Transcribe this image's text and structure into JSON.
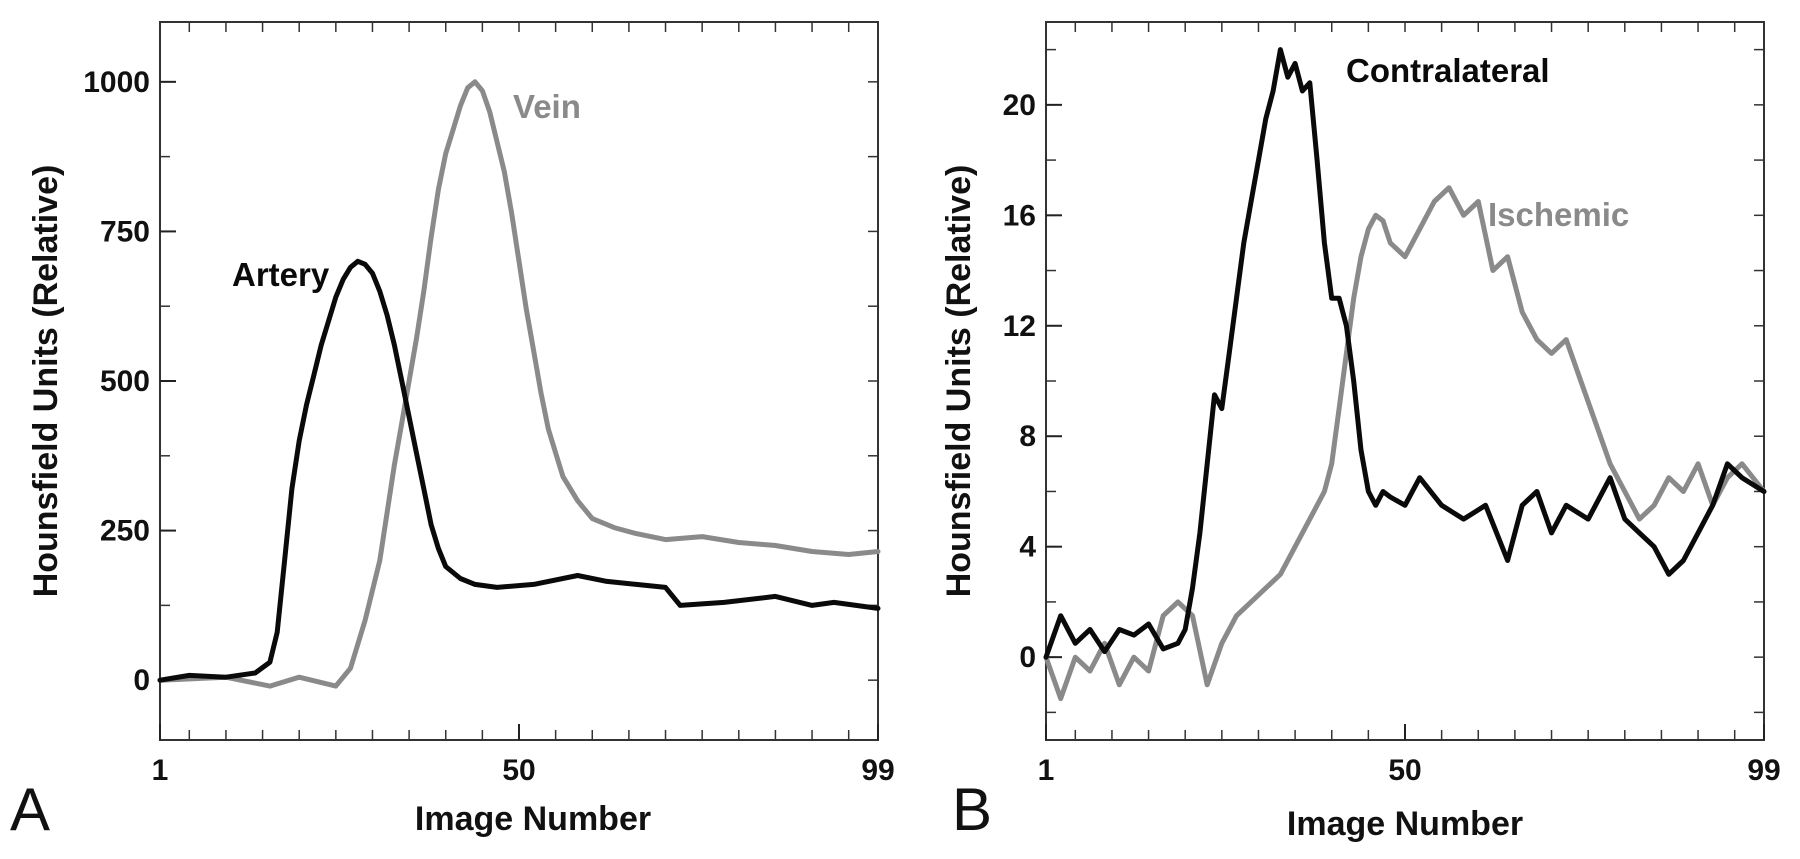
{
  "colors": {
    "black_series": "#0a0a0a",
    "gray_series": "#8a8a8a",
    "axis": "#333333"
  },
  "chart_data": [
    {
      "panel_label": "A",
      "type": "line",
      "xlabel": "Image Number",
      "ylabel": "Hounsfield Units (Relative)",
      "xlim": [
        1,
        99
      ],
      "ylim": [
        -100,
        1100
      ],
      "x_ticks": [
        "1",
        "50",
        "99"
      ],
      "y_ticks": [
        "0",
        "250",
        "500",
        "750",
        "1000"
      ],
      "x_tick_values": [
        1,
        50,
        99
      ],
      "y_tick_values": [
        0,
        250,
        500,
        750,
        1000
      ],
      "grid": false,
      "series": [
        {
          "name": "Artery",
          "color": "#0a0a0a",
          "x": [
            1,
            5,
            10,
            14,
            16,
            17,
            18,
            19,
            20,
            21,
            22,
            23,
            24,
            25,
            26,
            27,
            28,
            29,
            30,
            31,
            32,
            33,
            34,
            35,
            36,
            37,
            38,
            39,
            40,
            42,
            44,
            47,
            52,
            58,
            62,
            66,
            70,
            72,
            78,
            85,
            90,
            93,
            99
          ],
          "y": [
            0,
            8,
            5,
            12,
            30,
            80,
            200,
            320,
            400,
            460,
            510,
            560,
            600,
            640,
            670,
            690,
            700,
            695,
            680,
            650,
            610,
            560,
            500,
            440,
            380,
            320,
            260,
            220,
            190,
            170,
            160,
            155,
            160,
            175,
            165,
            160,
            155,
            125,
            130,
            140,
            125,
            130,
            120
          ]
        },
        {
          "name": "Vein",
          "color": "#8a8a8a",
          "x": [
            1,
            10,
            16,
            20,
            25,
            27,
            29,
            31,
            32,
            33,
            34,
            35,
            36,
            37,
            38,
            39,
            40,
            41,
            42,
            43,
            44,
            45,
            46,
            47,
            48,
            49,
            50,
            51,
            52,
            53,
            54,
            55,
            56,
            58,
            60,
            63,
            66,
            70,
            75,
            80,
            85,
            90,
            95,
            99
          ],
          "y": [
            0,
            5,
            -10,
            5,
            -10,
            20,
            100,
            200,
            280,
            360,
            430,
            500,
            570,
            650,
            740,
            820,
            880,
            920,
            960,
            990,
            1000,
            985,
            950,
            900,
            850,
            780,
            700,
            620,
            550,
            480,
            420,
            380,
            340,
            300,
            270,
            255,
            245,
            235,
            240,
            230,
            225,
            215,
            210,
            215
          ]
        }
      ]
    },
    {
      "panel_label": "B",
      "type": "line",
      "xlabel": "Image Number",
      "ylabel": "Hounsfield Units (Relative)",
      "xlim": [
        1,
        99
      ],
      "ylim": [
        -3,
        23
      ],
      "x_ticks": [
        "1",
        "50",
        "99"
      ],
      "y_ticks": [
        "0",
        "4",
        "8",
        "12",
        "16",
        "20"
      ],
      "x_tick_values": [
        1,
        50,
        99
      ],
      "y_tick_values": [
        0,
        4,
        8,
        12,
        16,
        20
      ],
      "grid": false,
      "series": [
        {
          "name": "Contralateral",
          "color": "#0a0a0a",
          "x": [
            1,
            3,
            5,
            7,
            9,
            11,
            13,
            15,
            17,
            19,
            20,
            21,
            22,
            23,
            24,
            25,
            26,
            27,
            28,
            29,
            30,
            31,
            32,
            33,
            34,
            35,
            36,
            37,
            38,
            39,
            40,
            41,
            42,
            43,
            44,
            45,
            46,
            47,
            48,
            50,
            52,
            55,
            58,
            61,
            64,
            66,
            68,
            70,
            72,
            75,
            78,
            80,
            82,
            84,
            86,
            88,
            90,
            92,
            94,
            96,
            99
          ],
          "y": [
            0,
            1.5,
            0.5,
            1,
            0.2,
            1,
            0.8,
            1.2,
            0.3,
            0.5,
            1,
            2.5,
            4.5,
            7,
            9.5,
            9,
            11,
            13,
            15,
            16.5,
            18,
            19.5,
            20.5,
            22,
            21,
            21.5,
            20.5,
            20.8,
            18,
            15,
            13,
            13,
            12,
            10,
            7.5,
            6,
            5.5,
            6,
            5.8,
            5.5,
            6.5,
            5.5,
            5,
            5.5,
            3.5,
            5.5,
            6,
            4.5,
            5.5,
            5,
            6.5,
            5,
            4.5,
            4,
            3,
            3.5,
            4.5,
            5.5,
            7,
            6.5,
            6
          ]
        },
        {
          "name": "Ischemic",
          "color": "#8a8a8a",
          "x": [
            1,
            3,
            5,
            7,
            9,
            11,
            13,
            15,
            17,
            19,
            21,
            23,
            25,
            27,
            29,
            31,
            33,
            35,
            37,
            39,
            40,
            41,
            42,
            43,
            44,
            45,
            46,
            47,
            48,
            50,
            52,
            54,
            56,
            58,
            60,
            62,
            64,
            66,
            68,
            70,
            72,
            74,
            76,
            78,
            80,
            82,
            84,
            86,
            88,
            90,
            92,
            94,
            96,
            99
          ],
          "y": [
            0,
            -1.5,
            0,
            -0.5,
            0.5,
            -1,
            0,
            -0.5,
            1.5,
            2,
            1.5,
            -1,
            0.5,
            1.5,
            2,
            2.5,
            3,
            4,
            5,
            6,
            7,
            9,
            11,
            13,
            14.5,
            15.5,
            16,
            15.8,
            15,
            14.5,
            15.5,
            16.5,
            17,
            16,
            16.5,
            14,
            14.5,
            12.5,
            11.5,
            11,
            11.5,
            10,
            8.5,
            7,
            6,
            5,
            5.5,
            6.5,
            6,
            7,
            5.5,
            6.5,
            7,
            6
          ]
        }
      ]
    }
  ]
}
